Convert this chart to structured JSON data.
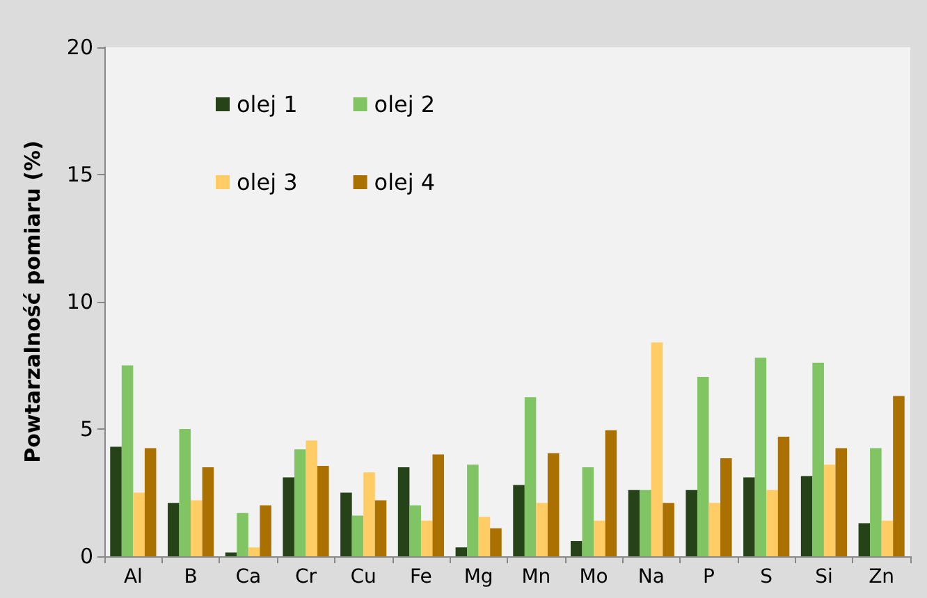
{
  "chart_data": {
    "type": "bar",
    "ylabel": "Powtarzalność pomiaru (%)",
    "categories": [
      "Al",
      "B",
      "Ca",
      "Cr",
      "Cu",
      "Fe",
      "Mg",
      "Mn",
      "Mo",
      "Na",
      "P",
      "S",
      "Si",
      "Zn"
    ],
    "series": [
      {
        "name": "olej 1",
        "color": "#264219",
        "values": [
          4.3,
          2.1,
          0.15,
          3.1,
          2.5,
          3.5,
          0.35,
          2.8,
          0.6,
          2.6,
          2.6,
          3.1,
          3.15,
          1.3
        ]
      },
      {
        "name": "olej 2",
        "color": "#80c463",
        "values": [
          7.5,
          5.0,
          1.7,
          4.2,
          1.6,
          2.0,
          3.6,
          6.25,
          3.5,
          2.6,
          7.05,
          7.8,
          7.6,
          4.25
        ]
      },
      {
        "name": "olej 3",
        "color": "#ffcc66",
        "values": [
          2.5,
          2.2,
          0.35,
          4.55,
          3.3,
          1.4,
          1.55,
          2.1,
          1.4,
          8.4,
          2.1,
          2.6,
          3.6,
          1.4
        ]
      },
      {
        "name": "olej 4",
        "color": "#aa7100",
        "values": [
          4.25,
          3.5,
          2.0,
          3.55,
          2.2,
          4.0,
          1.1,
          4.05,
          4.95,
          2.1,
          3.85,
          4.7,
          4.25,
          6.3
        ]
      }
    ],
    "ylim": [
      0,
      20
    ],
    "yticks": [
      0,
      5,
      10,
      15,
      20
    ],
    "grid": false,
    "legend": "top left"
  }
}
